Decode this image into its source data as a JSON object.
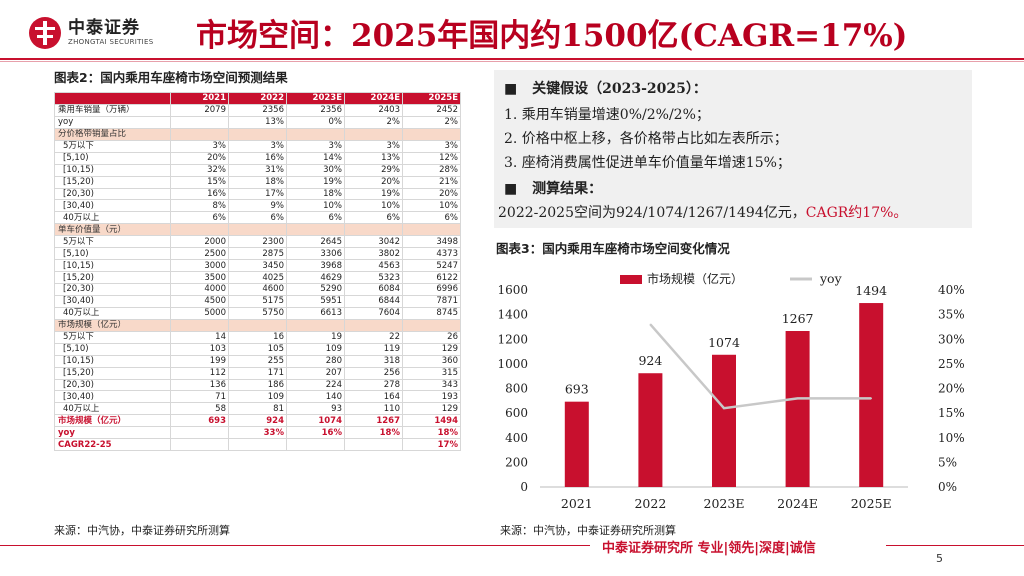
{
  "header": {
    "brand_cn": "中泰证券",
    "brand_en": "ZHONGTAI SECURITIES",
    "title": "市场空间：2025年国内约1500亿(CAGR=17%)"
  },
  "table2": {
    "title": "图表2：国内乘用车座椅市场空间预测结果",
    "columns": [
      "",
      "2021",
      "2022",
      "2023E",
      "2024E",
      "2025E"
    ],
    "rows": [
      {
        "type": "data",
        "label": "乘用车销量（万辆）",
        "values": [
          "2079",
          "2356",
          "2356",
          "2403",
          "2452"
        ]
      },
      {
        "type": "data",
        "label": "yoy",
        "values": [
          "",
          "13%",
          "0%",
          "2%",
          "2%"
        ]
      },
      {
        "type": "sec",
        "label": "分价格带销量占比",
        "values": [
          "",
          "",
          "",
          "",
          ""
        ]
      },
      {
        "type": "ind",
        "label": "5万以下",
        "values": [
          "3%",
          "3%",
          "3%",
          "3%",
          "3%"
        ]
      },
      {
        "type": "ind",
        "label": "[5,10)",
        "values": [
          "20%",
          "16%",
          "14%",
          "13%",
          "12%"
        ]
      },
      {
        "type": "ind",
        "label": "[10,15)",
        "values": [
          "32%",
          "31%",
          "30%",
          "29%",
          "28%"
        ]
      },
      {
        "type": "ind",
        "label": "[15,20)",
        "values": [
          "15%",
          "18%",
          "19%",
          "20%",
          "21%"
        ]
      },
      {
        "type": "ind",
        "label": "[20,30)",
        "values": [
          "16%",
          "17%",
          "18%",
          "19%",
          "20%"
        ]
      },
      {
        "type": "ind",
        "label": "[30,40)",
        "values": [
          "8%",
          "9%",
          "10%",
          "10%",
          "10%"
        ]
      },
      {
        "type": "ind",
        "label": "40万以上",
        "values": [
          "6%",
          "6%",
          "6%",
          "6%",
          "6%"
        ]
      },
      {
        "type": "sec",
        "label": "单车价值量（元）",
        "values": [
          "",
          "",
          "",
          "",
          ""
        ]
      },
      {
        "type": "ind",
        "label": "5万以下",
        "values": [
          "2000",
          "2300",
          "2645",
          "3042",
          "3498"
        ]
      },
      {
        "type": "ind",
        "label": "[5,10)",
        "values": [
          "2500",
          "2875",
          "3306",
          "3802",
          "4373"
        ]
      },
      {
        "type": "ind",
        "label": "[10,15)",
        "values": [
          "3000",
          "3450",
          "3968",
          "4563",
          "5247"
        ]
      },
      {
        "type": "ind",
        "label": "[15,20)",
        "values": [
          "3500",
          "4025",
          "4629",
          "5323",
          "6122"
        ]
      },
      {
        "type": "ind",
        "label": "[20,30)",
        "values": [
          "4000",
          "4600",
          "5290",
          "6084",
          "6996"
        ]
      },
      {
        "type": "ind",
        "label": "[30,40)",
        "values": [
          "4500",
          "5175",
          "5951",
          "6844",
          "7871"
        ]
      },
      {
        "type": "ind",
        "label": "40万以上",
        "values": [
          "5000",
          "5750",
          "6613",
          "7604",
          "8745"
        ]
      },
      {
        "type": "sec",
        "label": "市场规模（亿元）",
        "values": [
          "",
          "",
          "",
          "",
          ""
        ]
      },
      {
        "type": "ind",
        "label": "5万以下",
        "values": [
          "14",
          "16",
          "19",
          "22",
          "26"
        ]
      },
      {
        "type": "ind",
        "label": "[5,10)",
        "values": [
          "103",
          "105",
          "109",
          "119",
          "129"
        ]
      },
      {
        "type": "ind",
        "label": "[10,15)",
        "values": [
          "199",
          "255",
          "280",
          "318",
          "360"
        ]
      },
      {
        "type": "ind",
        "label": "[15,20)",
        "values": [
          "112",
          "171",
          "207",
          "256",
          "315"
        ]
      },
      {
        "type": "ind",
        "label": "[20,30)",
        "values": [
          "136",
          "186",
          "224",
          "278",
          "343"
        ]
      },
      {
        "type": "ind",
        "label": "[30,40)",
        "values": [
          "71",
          "109",
          "140",
          "164",
          "193"
        ]
      },
      {
        "type": "ind",
        "label": "40万以上",
        "values": [
          "58",
          "81",
          "93",
          "110",
          "129"
        ]
      },
      {
        "type": "tot",
        "label": "市场规模（亿元）",
        "values": [
          "693",
          "924",
          "1074",
          "1267",
          "1494"
        ]
      },
      {
        "type": "tot",
        "label": "yoy",
        "values": [
          "",
          "33%",
          "16%",
          "18%",
          "18%"
        ]
      },
      {
        "type": "tot",
        "label": "CAGR22-25",
        "values": [
          "",
          "",
          "",
          "",
          "17%"
        ]
      }
    ],
    "source": "来源：中汽协，中泰证券研究所测算"
  },
  "assumptions": {
    "heading1": "关键假设（2023-2025）：",
    "items": [
      "1.    乘用车销量增速0%/2%/2%；",
      "2.    价格中枢上移，各价格带占比如左表所示；",
      "3.    座椅消费属性促进单车价值量年增速15%；"
    ],
    "heading2": "测算结果：",
    "result_prefix": "2022-2025空间为924/1074/1267/1494亿元，",
    "result_highlight": "CAGR约17%。",
    "bullet": "■"
  },
  "chart3": {
    "title": "图表3：国内乘用车座椅市场空间变化情况",
    "source": "来源：中汽协，中泰证券研究所测算"
  },
  "chart_data": {
    "type": "bar",
    "title": "图表3：国内乘用车座椅市场空间变化情况",
    "categories": [
      "2021",
      "2022",
      "2023E",
      "2024E",
      "2025E"
    ],
    "series": [
      {
        "name": "市场规模（亿元）",
        "type": "bar",
        "axis": "left",
        "values": [
          693,
          924,
          1074,
          1267,
          1494
        ],
        "labels": [
          "693",
          "924",
          "1074",
          "1267",
          "1494"
        ],
        "color": "#c8102e"
      },
      {
        "name": "yoy",
        "type": "line",
        "axis": "right",
        "values": [
          null,
          0.33,
          0.16,
          0.18,
          0.18
        ],
        "color": "#c8c8c8"
      }
    ],
    "ylim": [
      0,
      1600
    ],
    "yticks": [
      "0",
      "200",
      "400",
      "600",
      "800",
      "1000",
      "1200",
      "1400",
      "1600"
    ],
    "y2lim": [
      0,
      0.4
    ],
    "y2ticks": [
      "0%",
      "5%",
      "10%",
      "15%",
      "20%",
      "25%",
      "30%",
      "35%",
      "40%"
    ],
    "legend": "top",
    "grid": false
  },
  "footer": {
    "text": "中泰证券研究所 专业|领先|深度|诚信",
    "page": "5"
  },
  "colors": {
    "accent": "#c8102e",
    "highlight_row": "#f8d9c9",
    "line": "#c8c8c8"
  }
}
